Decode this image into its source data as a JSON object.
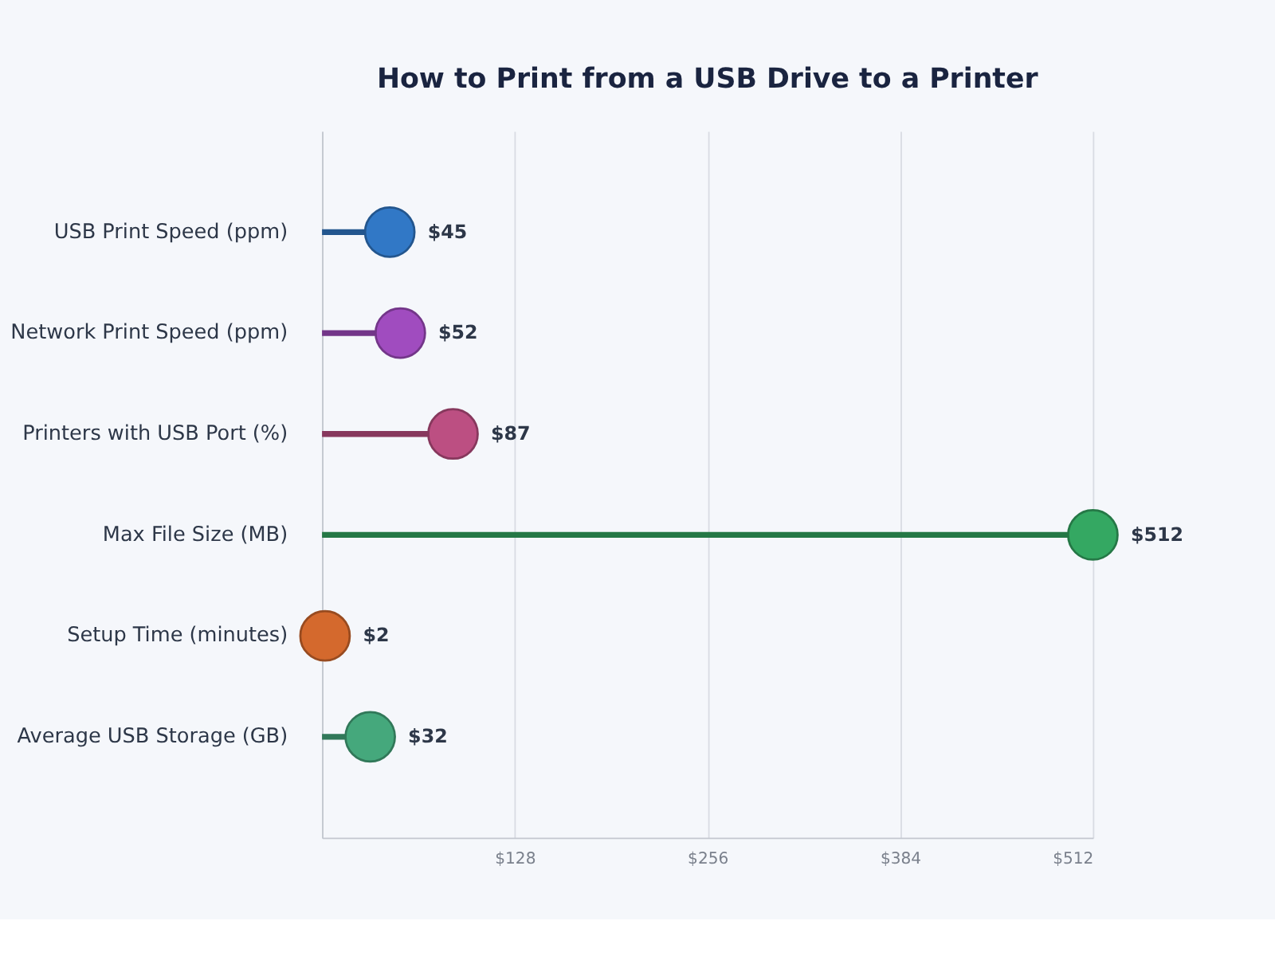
{
  "chart_data": {
    "type": "lollipop",
    "title": "How to Print from a USB Drive to a Printer",
    "orientation": "horizontal",
    "categories": [
      "USB Print Speed (ppm)",
      "Network Print Speed (ppm)",
      "Printers with USB Port (%)",
      "Max File Size (MB)",
      "Setup Time (minutes)",
      "Average USB Storage (GB)"
    ],
    "values": [
      45,
      52,
      87,
      512,
      2,
      32
    ],
    "colors": [
      "#3178c6",
      "#a04cbf",
      "#bc4f82",
      "#34a862",
      "#d4692d",
      "#45a87c"
    ],
    "value_labels": [
      "$45",
      "$52",
      "$87",
      "$512",
      "$2",
      "$32"
    ],
    "xlim": [
      0,
      512
    ],
    "xticks": [
      {
        "value": 0,
        "label": null
      },
      {
        "value": 128,
        "label": "$128"
      },
      {
        "value": 256,
        "label": "$256"
      },
      {
        "value": 384,
        "label": "$384"
      },
      {
        "value": 512,
        "label": "$512"
      }
    ],
    "grid": "x",
    "marker": "circle"
  }
}
